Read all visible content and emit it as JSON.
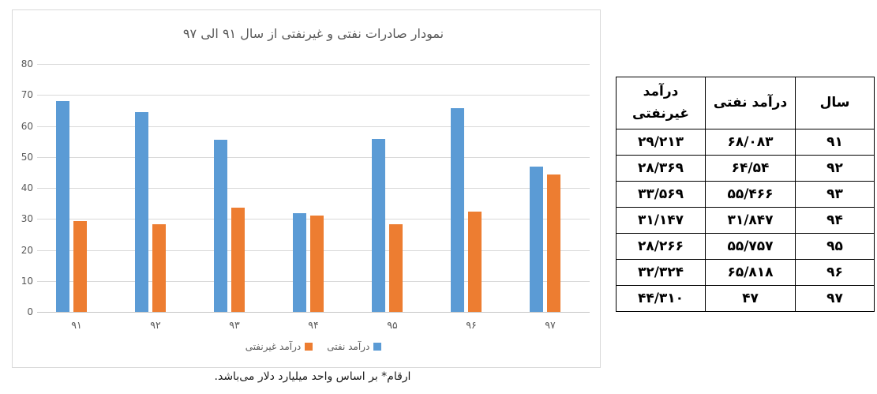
{
  "chart": {
    "panel_border_color": "#D9D9D9",
    "footnote": "ارقام* بر اساس واحد میلیارد دلار می‌باشد."
  },
  "chart_data": {
    "type": "bar",
    "title": "نمودار صادرات نفتی و غیرنفتی از سال ۹۱ الی ۹۷",
    "categories": [
      "۹۱",
      "۹۲",
      "۹۳",
      "۹۴",
      "۹۵",
      "۹۶",
      "۹۷"
    ],
    "series": [
      {
        "name": "درآمد نفتی",
        "color": "#5B9BD5",
        "values": [
          68.083,
          64.54,
          55.466,
          31.847,
          55.757,
          65.818,
          47
        ]
      },
      {
        "name": "درآمد غیرنفتی",
        "color": "#ED7D31",
        "values": [
          29.213,
          28.369,
          33.569,
          31.147,
          28.266,
          32.324,
          44.31
        ]
      }
    ],
    "ylim": [
      0,
      80
    ],
    "yticks": [
      0,
      10,
      20,
      30,
      40,
      50,
      60,
      70,
      80
    ],
    "ytick_labels": [
      "0",
      "10",
      "20",
      "30",
      "40",
      "50",
      "60",
      "70",
      "80"
    ],
    "grid": true,
    "grid_color": "#D9D9D9",
    "axis_text_color": "#595959",
    "legend_position": "bottom",
    "unit_note": "میلیارد دلار"
  },
  "table": {
    "columns": [
      {
        "key": "year",
        "label": "سال"
      },
      {
        "key": "oil",
        "label": "درآمد نفتی"
      },
      {
        "key": "nonoil",
        "label": "درآمد غیرنفتی"
      }
    ],
    "rows": [
      {
        "year": "۹۱",
        "oil": "۶۸/۰۸۳",
        "nonoil": "۲۹/۲۱۳"
      },
      {
        "year": "۹۲",
        "oil": "۶۴/۵۴",
        "nonoil": "۲۸/۳۶۹"
      },
      {
        "year": "۹۳",
        "oil": "۵۵/۴۶۶",
        "nonoil": "۳۳/۵۶۹"
      },
      {
        "year": "۹۴",
        "oil": "۳۱/۸۴۷",
        "nonoil": "۳۱/۱۴۷"
      },
      {
        "year": "۹۵",
        "oil": "۵۵/۷۵۷",
        "nonoil": "۲۸/۲۶۶"
      },
      {
        "year": "۹۶",
        "oil": "۶۵/۸۱۸",
        "nonoil": "۳۲/۳۲۴"
      },
      {
        "year": "۹۷",
        "oil": "۴۷",
        "nonoil": "۴۴/۳۱۰"
      }
    ]
  }
}
